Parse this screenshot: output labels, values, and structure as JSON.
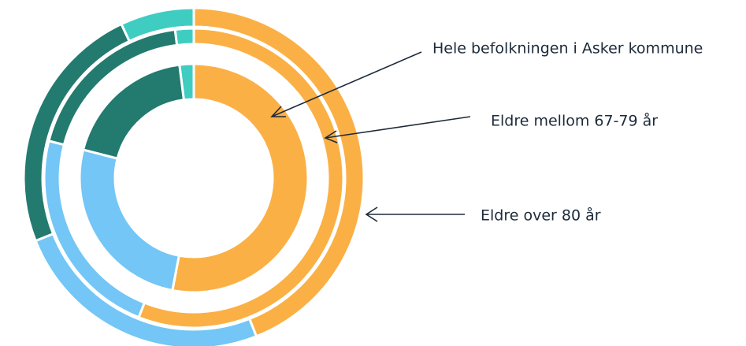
{
  "chart_data": {
    "type": "donut",
    "colors": [
      "#fbb045",
      "#73c6f5",
      "#237a6f",
      "#3fcdc2"
    ],
    "series": [
      {
        "name": "Hele befolkningen i Asker kommune",
        "values": [
          53,
          26,
          19,
          2
        ]
      },
      {
        "name": "Eldre mellom 67-79 år",
        "values": [
          56,
          23,
          19,
          2
        ]
      },
      {
        "name": "Eldre over 80 år",
        "values": [
          44,
          25,
          24,
          7
        ]
      }
    ]
  }
}
